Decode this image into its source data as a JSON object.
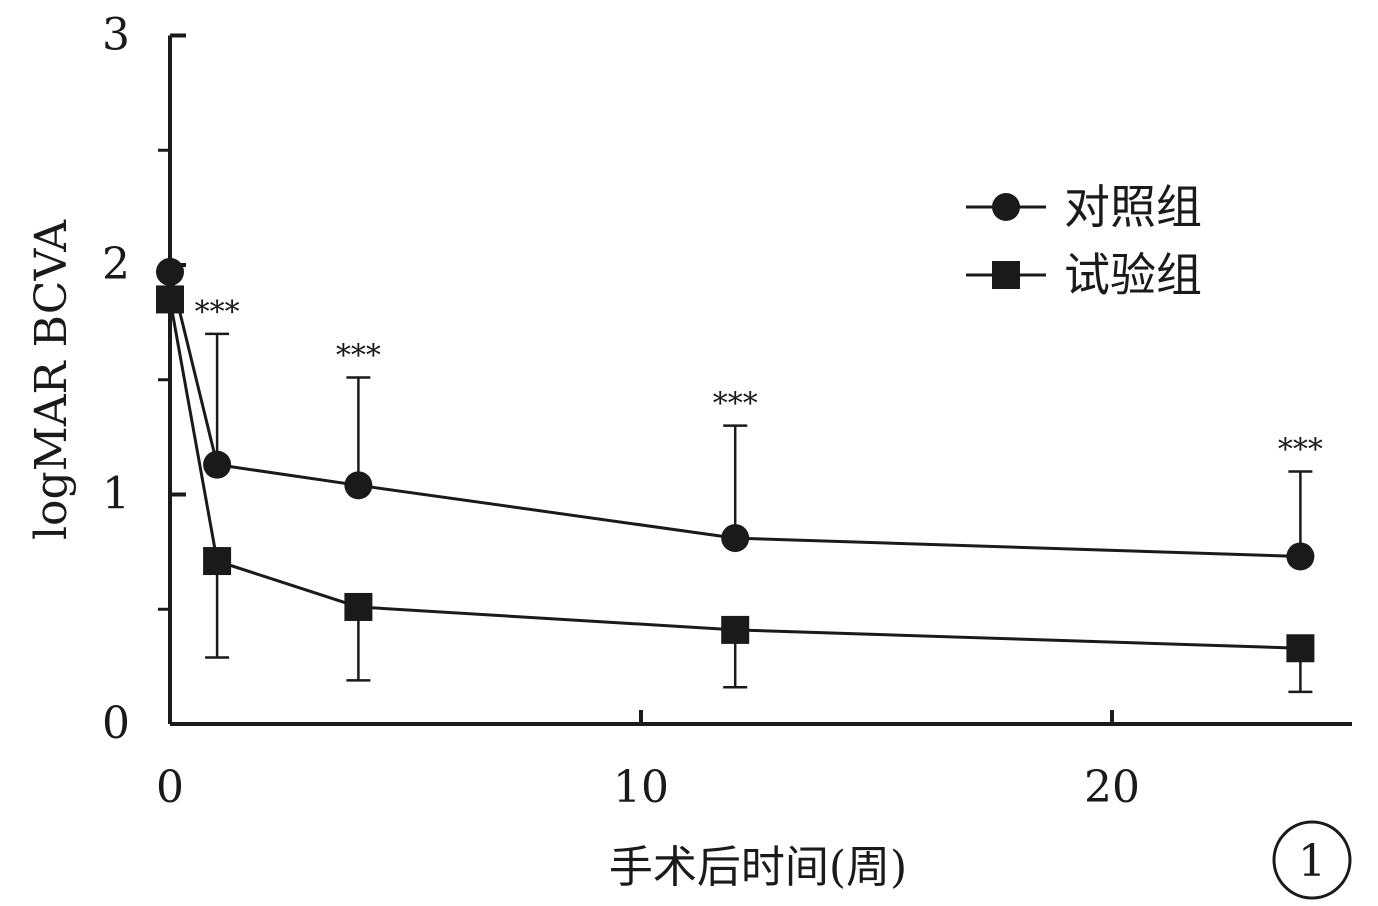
{
  "chart_data": {
    "type": "line",
    "xlabel": "手术后时间(周)",
    "ylabel": "logMAR BCVA",
    "xlim": [
      0,
      25
    ],
    "ylim": [
      0,
      3
    ],
    "xticks": [
      0,
      10,
      20
    ],
    "yticks": [
      0,
      1,
      2,
      3
    ],
    "grid": false,
    "legend_position": "top-right",
    "x": [
      0,
      1,
      4,
      12,
      24
    ],
    "series": [
      {
        "name": "对照组",
        "marker": "circle",
        "values": [
          1.97,
          1.13,
          1.04,
          0.81,
          0.73
        ],
        "error_upper": [
          null,
          1.7,
          1.51,
          1.3,
          1.1
        ]
      },
      {
        "name": "试验组",
        "marker": "square",
        "values": [
          1.85,
          0.71,
          0.51,
          0.41,
          0.33
        ],
        "error_lower": [
          null,
          0.29,
          0.19,
          0.16,
          0.14
        ]
      }
    ],
    "significance_labels": [
      {
        "x": 1,
        "text": "***"
      },
      {
        "x": 4,
        "text": "***"
      },
      {
        "x": 12,
        "text": "***"
      },
      {
        "x": 24,
        "text": "***"
      }
    ],
    "panel_label": "1"
  },
  "colors": {
    "ink": "#1a1a1a",
    "background": "#ffffff"
  }
}
